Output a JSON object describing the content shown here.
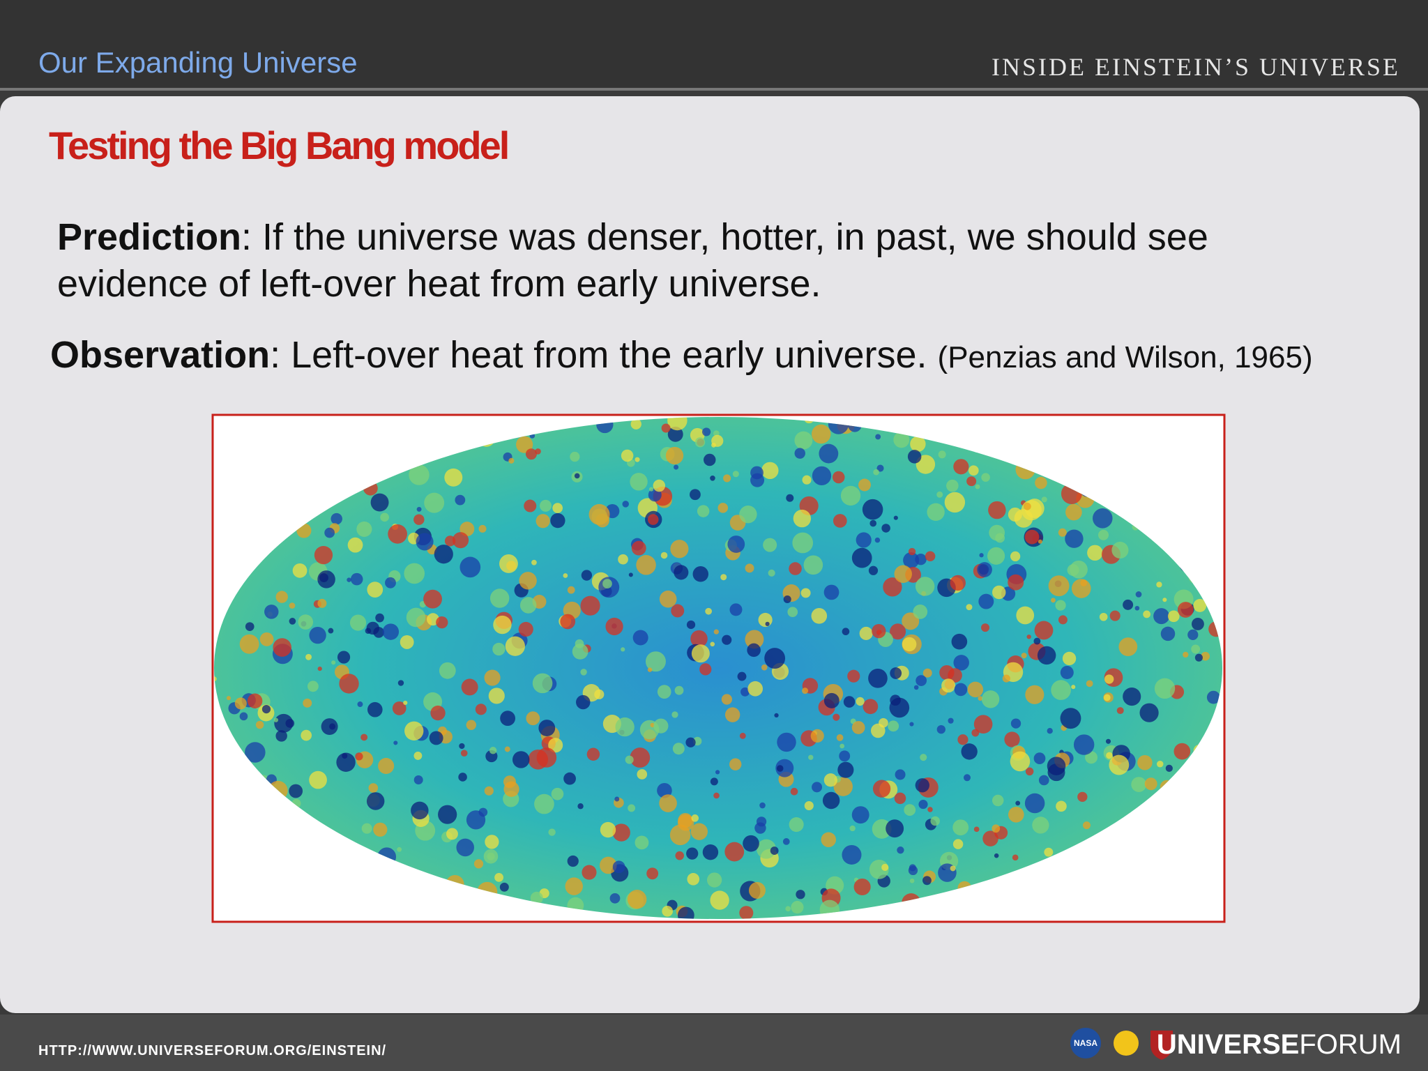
{
  "header": {
    "section": "Our Expanding Universe",
    "brand": "INSIDE EINSTEIN’S UNIVERSE"
  },
  "slide": {
    "title": "Testing the Big Bang model",
    "prediction": {
      "label": "Prediction",
      "text": ":  If the universe was denser, hotter, in past, we should see",
      "text2": "evidence of left-over heat from early universe."
    },
    "observation": {
      "label": "Observation",
      "text": ":  Left-over heat from the early universe. ",
      "citation": "(Penzias and Wilson, 1965)"
    }
  },
  "footer": {
    "url": "HTTP://WWW.UNIVERSEFORUM.ORG/EINSTEIN/",
    "badge": "NASA",
    "logo_bold": "UNIVERSE",
    "logo_light": "FORUM"
  }
}
